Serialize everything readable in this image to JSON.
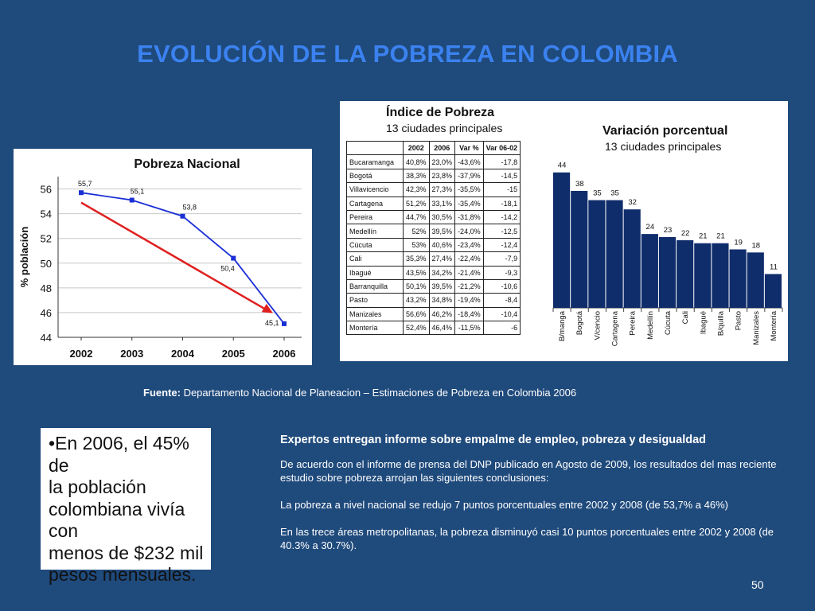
{
  "slide": {
    "title": "EVOLUCIÓN DE LA POBREZA EN COLOMBIA",
    "page_number": "50",
    "source_label": "Fuente:",
    "source_text": " Departamento Nacional de Planeacion – Estimaciones de Pobreza en Colombia 2006"
  },
  "quote": {
    "lines": [
      "•En 2006, el 45% de",
      "la población",
      "colombiana vivía con",
      "menos de $232 mil",
      "pesos mensuales."
    ]
  },
  "news": {
    "headline": "Expertos entregan informe sobre empalme de empleo, pobreza y desigualdad",
    "p1": "De acuerdo con el informe de prensa del DNP publicado en Agosto de 2009, los resultados del mas reciente estudio sobre pobreza arrojan las siguientes conclusiones:",
    "p2": "La pobreza a nivel nacional se redujo 7 puntos porcentuales entre 2002 y 2008 (de 53,7% a 46%)",
    "p3": "En las trece áreas metropolitanas, la pobreza disminuyó casi 10 puntos porcentuales entre 2002 y 2008 (de 40.3% a 30.7%)."
  },
  "index_table": {
    "title": "Índice de Pobreza",
    "subtitle": "13 ciudades principales",
    "headers": [
      "",
      "2002",
      "2006",
      "Var %",
      "Var 06-02"
    ],
    "rows": [
      [
        "Bucaramanga",
        "40,8%",
        "23,0%",
        "-43,6%",
        "-17,8"
      ],
      [
        "Bogotá",
        "38,3%",
        "23,8%",
        "-37,9%",
        "-14,5"
      ],
      [
        "Villavicencio",
        "42,3%",
        "27,3%",
        "-35,5%",
        "-15"
      ],
      [
        "Cartagena",
        "51,2%",
        "33,1%",
        "-35,4%",
        "-18,1"
      ],
      [
        "Pereira",
        "44,7%",
        "30,5%",
        "-31,8%",
        "-14,2"
      ],
      [
        "Medellín",
        "52%",
        "39,5%",
        "-24,0%",
        "-12,5"
      ],
      [
        "Cúcuta",
        "53%",
        "40,6%",
        "-23,4%",
        "-12,4"
      ],
      [
        "Cali",
        "35,3%",
        "27,4%",
        "-22,4%",
        "-7,9"
      ],
      [
        "Ibagué",
        "43,5%",
        "34,2%",
        "-21,4%",
        "-9,3"
      ],
      [
        "Barranquilla",
        "50,1%",
        "39,5%",
        "-21,2%",
        "-10,6"
      ],
      [
        "Pasto",
        "43,2%",
        "34,8%",
        "-19,4%",
        "-8,4"
      ],
      [
        "Manizales",
        "56,6%",
        "46,2%",
        "-18,4%",
        "-10,4"
      ],
      [
        "Montería",
        "52,4%",
        "46,4%",
        "-11,5%",
        "-6"
      ]
    ]
  },
  "chart_data": [
    {
      "type": "line",
      "title": "Pobreza Nacional",
      "xlabel": "",
      "ylabel": "% población",
      "x": [
        "2002",
        "2003",
        "2004",
        "2005",
        "2006"
      ],
      "y": [
        55.7,
        55.1,
        53.8,
        50.4,
        45.1
      ],
      "data_labels": [
        "55,7",
        "55,1",
        "53,8",
        "50,4",
        "45,1"
      ],
      "yticks": [
        "44",
        "46",
        "48",
        "50",
        "52",
        "54",
        "56"
      ],
      "ylim": [
        44,
        57
      ],
      "trend_arrow": {
        "from": [
          2002,
          54.9
        ],
        "to": [
          2006,
          45.7
        ],
        "color": "#e02020"
      },
      "line_color": "#1a2fd6",
      "grid": "horizontal"
    },
    {
      "type": "bar",
      "title": "Variación porcentual",
      "subtitle": "13 ciudades principales",
      "categories": [
        "B/manga",
        "Bogotá",
        "V/cencio",
        "Cartagena",
        "Pereira",
        "Medellín",
        "Cúcuta",
        "Cali",
        "Ibagué",
        "B/quilla",
        "Pasto",
        "Manizales",
        "Montería"
      ],
      "values": [
        44,
        38,
        35,
        35,
        32,
        24,
        23,
        22,
        21,
        21,
        19,
        18,
        11
      ],
      "ylim": [
        0,
        46
      ],
      "bar_color": "#0f2d6b",
      "grid": false
    }
  ]
}
